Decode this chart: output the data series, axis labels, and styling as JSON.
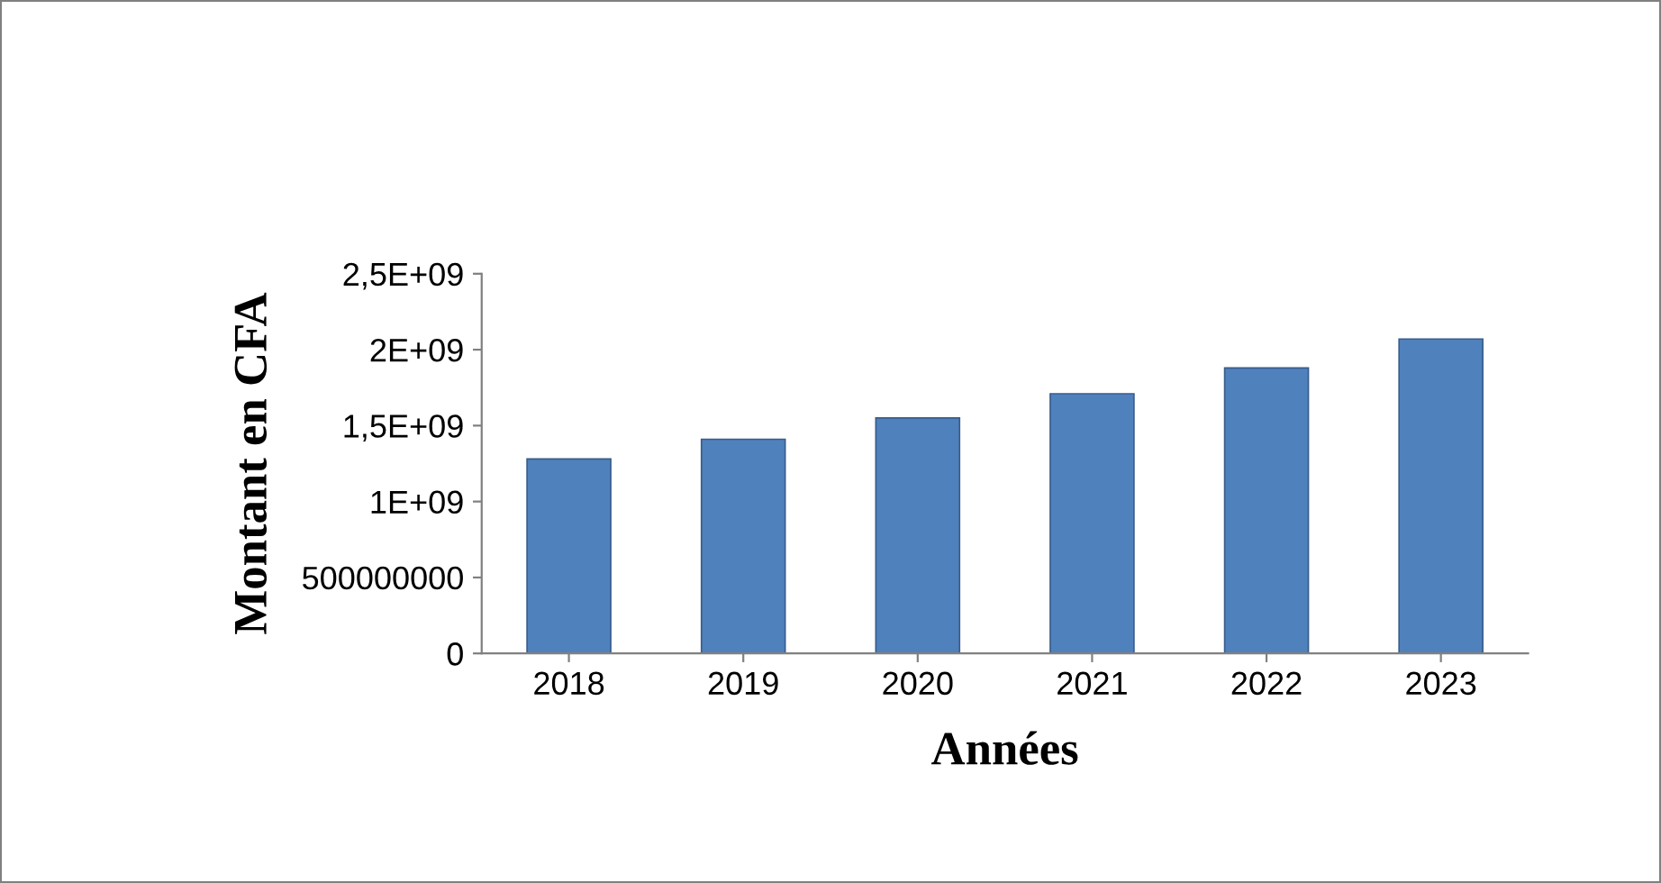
{
  "chart_data": {
    "type": "bar",
    "xlabel": "Années",
    "ylabel": "Montant en CFA",
    "categories": [
      "2018",
      "2019",
      "2020",
      "2021",
      "2022",
      "2023"
    ],
    "values": [
      1280000000,
      1410000000,
      1550000000,
      1710000000,
      1880000000,
      2070000000
    ],
    "color": "#4f81bd",
    "ylim": [
      0,
      2500000000
    ],
    "yticks": [
      0,
      500000000,
      {
        "value": 1000000000,
        "label": "1E+09"
      },
      {
        "value": 1500000000,
        "label": "1,5E+09"
      },
      {
        "value": 2000000000,
        "label": "2E+09"
      },
      {
        "value": 2500000000,
        "label": "2,5E+09"
      }
    ],
    "grid": false,
    "legend": false
  }
}
